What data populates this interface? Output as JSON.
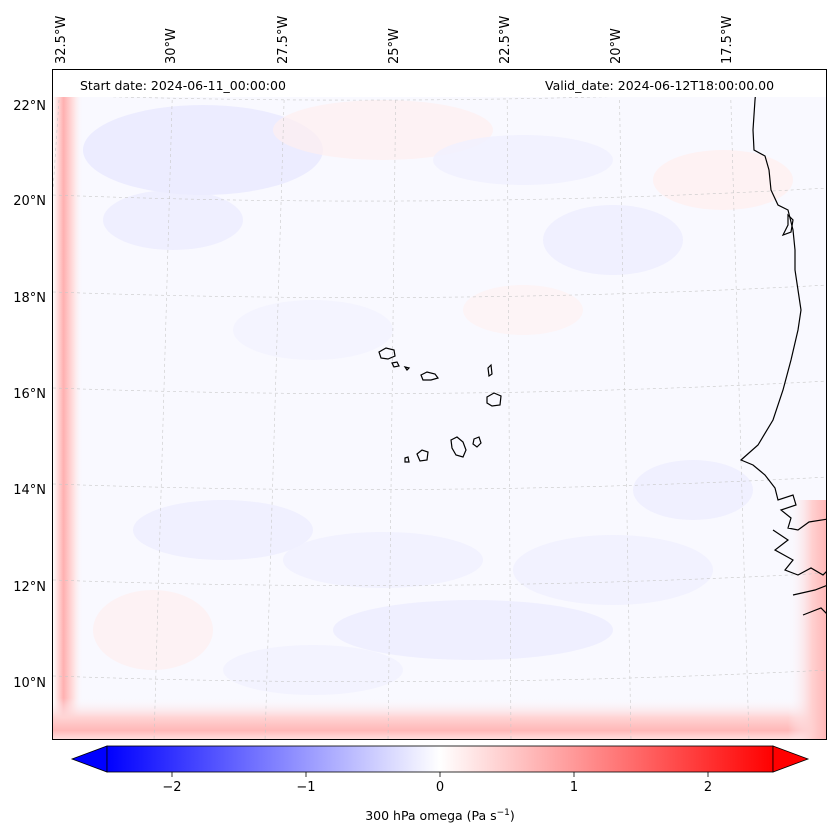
{
  "header": {
    "start_date": "Start date: 2024-06-11_00:00:00",
    "valid_date": "Valid_date: 2024-06-12T18:00:00.00"
  },
  "map": {
    "longitude_labels": [
      "32.5°W",
      "30°W",
      "27.5°W",
      "25°W",
      "22.5°W",
      "20°W",
      "17.5°W"
    ],
    "latitude_labels": [
      "22°N",
      "20°N",
      "18°N",
      "16°N",
      "14°N",
      "12°N",
      "10°N"
    ],
    "region": "Cape Verde islands and West African coast",
    "field": "300 hPa omega",
    "colormap": "bwr",
    "gridlines": true
  },
  "colorbar": {
    "ticks": [
      "−2",
      "−1",
      "0",
      "1",
      "2"
    ],
    "range": [
      -2.7,
      2.7
    ],
    "extend": "both",
    "low_color": "#0000ff",
    "mid_color": "#ffffff",
    "high_color": "#ff0000",
    "label": "300 hPa omega (Pa s",
    "label_exponent": "−1",
    "label_close": ")"
  }
}
